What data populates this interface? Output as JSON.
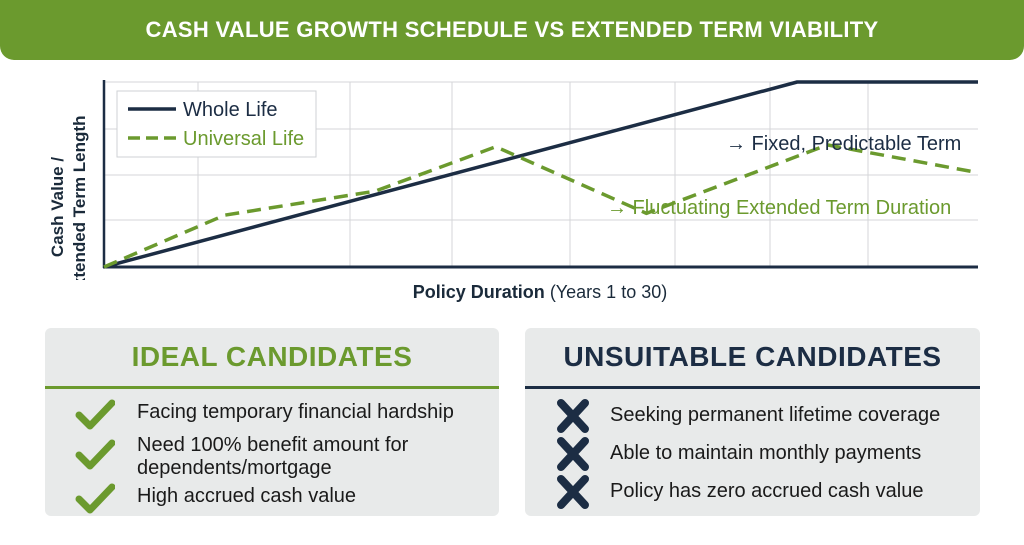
{
  "header": {
    "title": "CASH VALUE GROWTH SCHEDULE VS EXTENDED TERM VIABILITY"
  },
  "chart_data": {
    "type": "line",
    "ylabel_line1": "Cash Value /",
    "ylabel_line2": "Extended Term Length",
    "xlabel_bold": "Policy Duration",
    "xlabel_rest": " (Years 1 to 30)",
    "xlim": [
      1,
      30
    ],
    "ylim": [
      0,
      100
    ],
    "grid": true,
    "legend_position": "top-left",
    "series": [
      {
        "name": "Whole Life",
        "color": "#1c2d44",
        "style": "solid",
        "x": [
          1,
          24,
          30
        ],
        "y": [
          0,
          100,
          100
        ]
      },
      {
        "name": "Universal Life",
        "color": "#6b9a2e",
        "style": "dashed",
        "x": [
          1,
          5,
          10,
          14,
          19,
          25,
          30
        ],
        "y": [
          0,
          28,
          41,
          65,
          29,
          66,
          51
        ]
      }
    ],
    "annotations": [
      {
        "text": "→ Fixed, Predictable Term",
        "color": "#1c2d44"
      },
      {
        "text": "→ Fluctuating Extended Term Duration",
        "color": "#6b9a2e"
      }
    ]
  },
  "ideal": {
    "title": "IDEAL CANDIDATES",
    "items": [
      {
        "line1": "Facing temporary financial hardship",
        "line2": ""
      },
      {
        "line1": "Need 100% benefit amount for",
        "line2": "dependents/mortgage"
      },
      {
        "line1": "High accrued cash value",
        "line2": ""
      }
    ],
    "icon": "check-icon",
    "color": "#6b9a2e"
  },
  "unsuitable": {
    "title": "UNSUITABLE CANDIDATES",
    "items": [
      {
        "line1": "Seeking permanent lifetime coverage",
        "line2": ""
      },
      {
        "line1": "Able to maintain monthly payments",
        "line2": ""
      },
      {
        "line1": "Policy has zero accrued cash value",
        "line2": ""
      }
    ],
    "icon": "x-icon",
    "color": "#1c2d44"
  }
}
